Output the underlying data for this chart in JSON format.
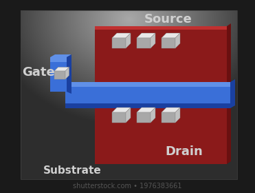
{
  "bg_color": "#1a1a1a",
  "red_region_color": "#8b1a1a",
  "red_highlight": "#c03030",
  "gate_blue": "#3a6fd8",
  "gate_blue_dark": "#1a40a0",
  "gate_blue_top": "#6090e8",
  "gate_blue_side": "#2855b8",
  "cube_top": "#e8e8e8",
  "cube_left": "#a8a8a8",
  "cube_right": "#c0c0c0",
  "text_color": "#d0d0d0",
  "source_label": "Source",
  "gate_label": "Gate",
  "drain_label": "Drain",
  "substrate_label": "Substrate",
  "watermark": "shutterstock.com • 1976383661",
  "figsize": [
    3.71,
    2.8
  ],
  "dpi": 100,
  "label_fontsize": 13,
  "sub_fontsize": 11,
  "wm_fontsize": 7
}
